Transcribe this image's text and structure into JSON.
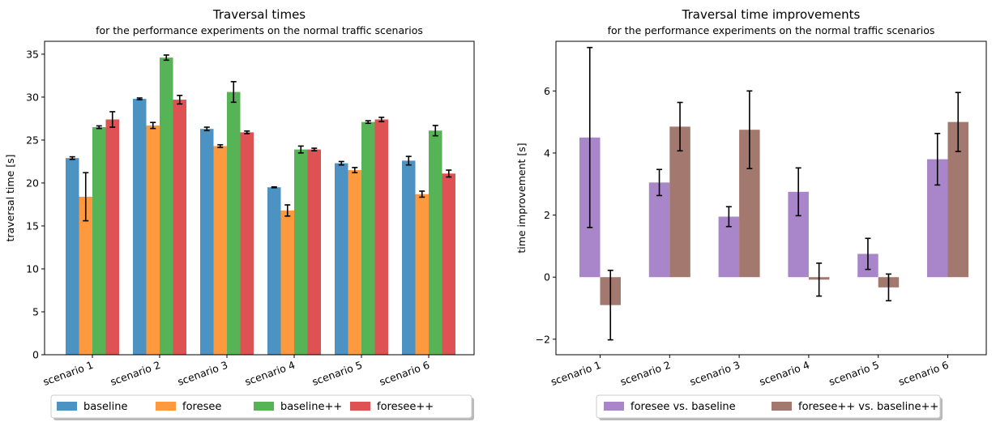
{
  "chart_data": [
    {
      "type": "bar",
      "title": "Traversal times",
      "subtitle": "for the performance experiments on the normal traffic scenarios",
      "xlabel": "",
      "ylabel": "traversal time [s]",
      "ylim": [
        0,
        36.5
      ],
      "yticks": [
        0,
        5,
        10,
        15,
        20,
        25,
        30,
        35
      ],
      "categories": [
        "scenario 1",
        "scenario 2",
        "scenario 3",
        "scenario 4",
        "scenario 5",
        "scenario 6"
      ],
      "series": [
        {
          "name": "baseline",
          "color": "#1f77b4",
          "values": [
            22.9,
            29.8,
            26.3,
            19.5,
            22.3,
            22.6
          ],
          "errors": [
            0.15,
            0.1,
            0.2,
            0.05,
            0.2,
            0.5
          ]
        },
        {
          "name": "foresee",
          "color": "#ff7f0e",
          "values": [
            18.4,
            26.7,
            24.3,
            16.8,
            21.5,
            18.7
          ],
          "errors": [
            2.8,
            0.35,
            0.15,
            0.65,
            0.3,
            0.35
          ]
        },
        {
          "name": "baseline++",
          "color": "#2ca02c",
          "values": [
            26.5,
            34.6,
            30.6,
            23.9,
            27.1,
            26.1
          ],
          "errors": [
            0.15,
            0.3,
            1.2,
            0.4,
            0.15,
            0.6
          ]
        },
        {
          "name": "foresee++",
          "color": "#d62728",
          "values": [
            27.4,
            29.7,
            25.9,
            23.9,
            27.4,
            21.1
          ],
          "errors": [
            0.9,
            0.5,
            0.15,
            0.15,
            0.25,
            0.4
          ]
        }
      ],
      "legend": "bottom-center",
      "grid": false
    },
    {
      "type": "bar",
      "title": "Traversal time improvements",
      "subtitle": "for the performance experiments on the normal traffic scenarios",
      "xlabel": "",
      "ylabel": "time improvement [s]",
      "ylim": [
        -2.5,
        7.6
      ],
      "yticks": [
        -2,
        0,
        2,
        4,
        6
      ],
      "ytick_labels": [
        "−2",
        "0",
        "2",
        "4",
        "6"
      ],
      "categories": [
        "scenario 1",
        "scenario 2",
        "scenario 3",
        "scenario 4",
        "scenario 5",
        "scenario 6"
      ],
      "series": [
        {
          "name": "foresee vs. baseline",
          "color": "#9467bd",
          "values": [
            4.5,
            3.05,
            1.95,
            2.75,
            0.75,
            3.8
          ],
          "errors": [
            2.9,
            0.42,
            0.32,
            0.77,
            0.5,
            0.83
          ]
        },
        {
          "name": "foresee++ vs. baseline++",
          "color": "#8c564b",
          "values": [
            -0.9,
            4.85,
            4.75,
            -0.08,
            -0.33,
            5.0
          ],
          "errors": [
            1.12,
            0.78,
            1.25,
            0.53,
            0.43,
            0.95
          ]
        }
      ],
      "legend": "bottom-center",
      "grid": false
    }
  ]
}
